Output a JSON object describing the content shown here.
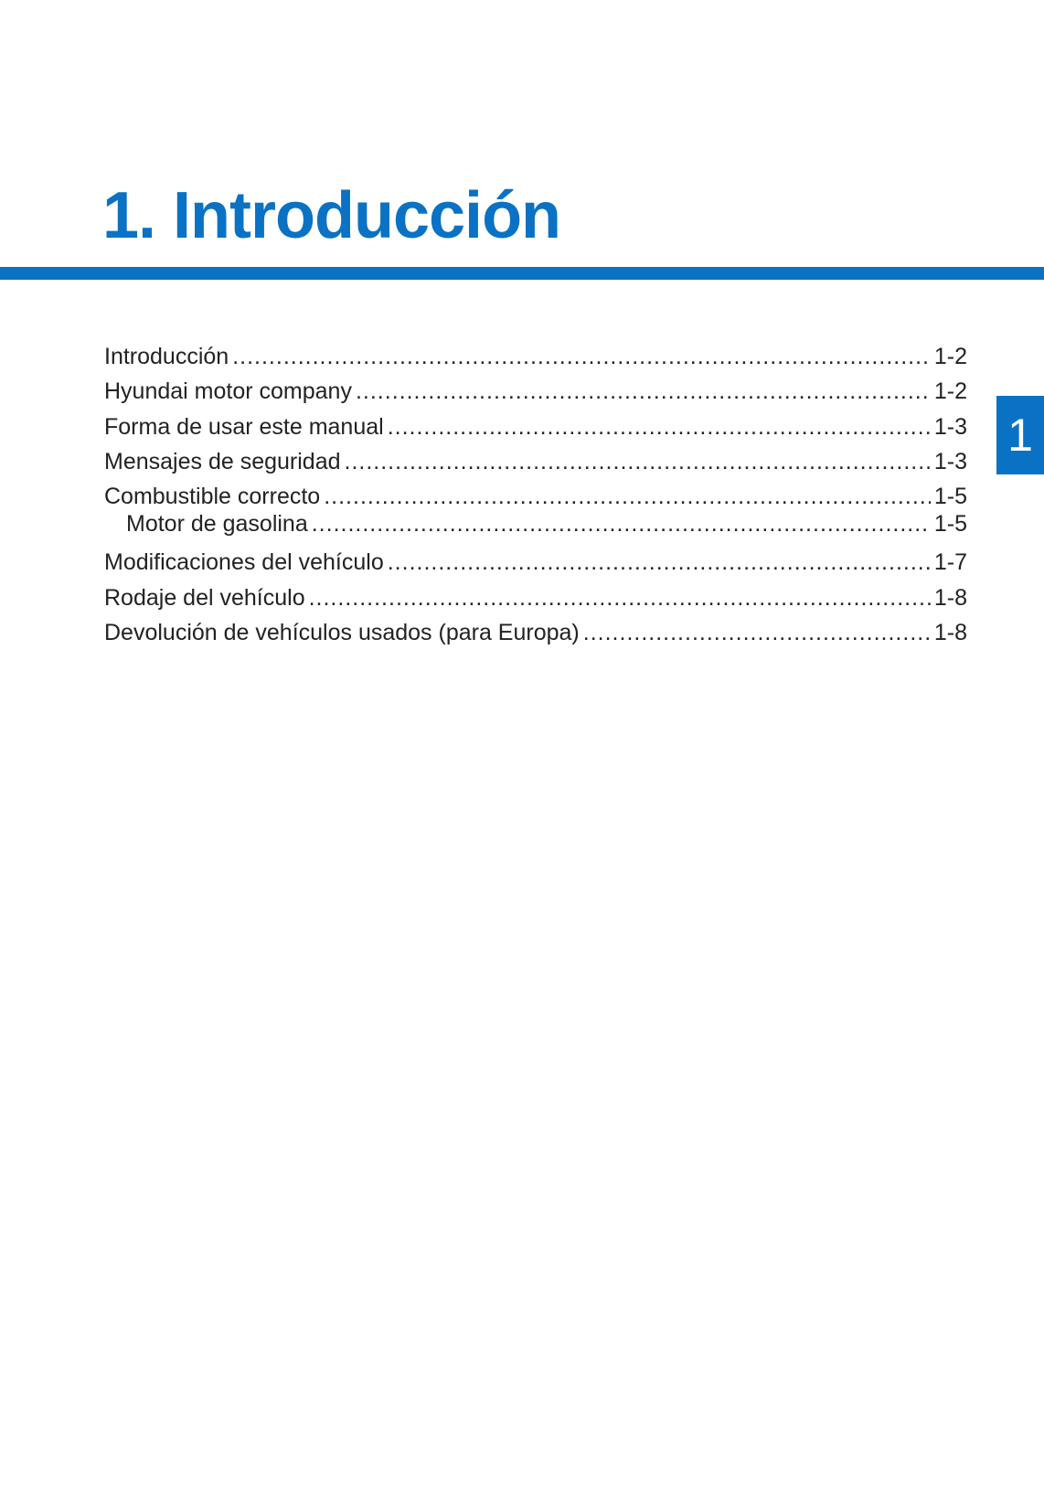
{
  "chapter": {
    "title": "1. Introducción",
    "tab_number": "1",
    "accent_color": "#0a72c4"
  },
  "toc": [
    {
      "label": "Introducción",
      "page": "1-2",
      "level": 1
    },
    {
      "label": "Hyundai motor company",
      "page": "1-2",
      "level": 1
    },
    {
      "label": "Forma de usar este manual",
      "page": "1-3",
      "level": 1
    },
    {
      "label": "Mensajes de seguridad",
      "page": "1-3",
      "level": 1
    },
    {
      "label": "Combustible correcto",
      "page": "1-5",
      "level": 1
    },
    {
      "label": "Motor de gasolina",
      "page": "1-5",
      "level": 2
    },
    {
      "label": "Modificaciones del vehículo",
      "page": "1-7",
      "level": 1
    },
    {
      "label": "Rodaje del vehículo",
      "page": "1-8",
      "level": 1
    },
    {
      "label": "Devolución de vehículos usados (para Europa)",
      "page": "1-8",
      "level": 1
    }
  ]
}
